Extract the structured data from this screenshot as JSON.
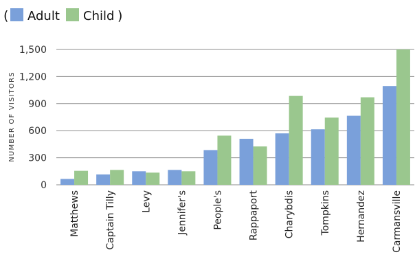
{
  "legend": {
    "prefix": "(",
    "suffix": ")"
  },
  "chart_data": {
    "type": "bar",
    "categories": [
      "Matthews",
      "Captain Tilly",
      "Levy",
      "Jennifer's",
      "People's",
      "Rappaport",
      "Charybdis",
      "Tompkins",
      "Hernandez",
      "Carmansville"
    ],
    "series": [
      {
        "name": "Adult",
        "color": "#7aa0da",
        "values": [
          65,
          115,
          150,
          165,
          385,
          510,
          570,
          615,
          765,
          1095
        ]
      },
      {
        "name": "Child",
        "color": "#9ac78e",
        "values": [
          155,
          165,
          135,
          150,
          545,
          425,
          985,
          745,
          970,
          1500
        ]
      }
    ],
    "ylabel": "NUMBER OF VISITORS",
    "ylim": [
      0,
      1500
    ],
    "yticks": [
      0,
      300,
      600,
      900,
      1200,
      1500
    ],
    "ytick_labels": [
      "0",
      "300",
      "600",
      "900",
      "1,200",
      "1,500"
    ],
    "grid": true,
    "legend_position": "top-left"
  }
}
